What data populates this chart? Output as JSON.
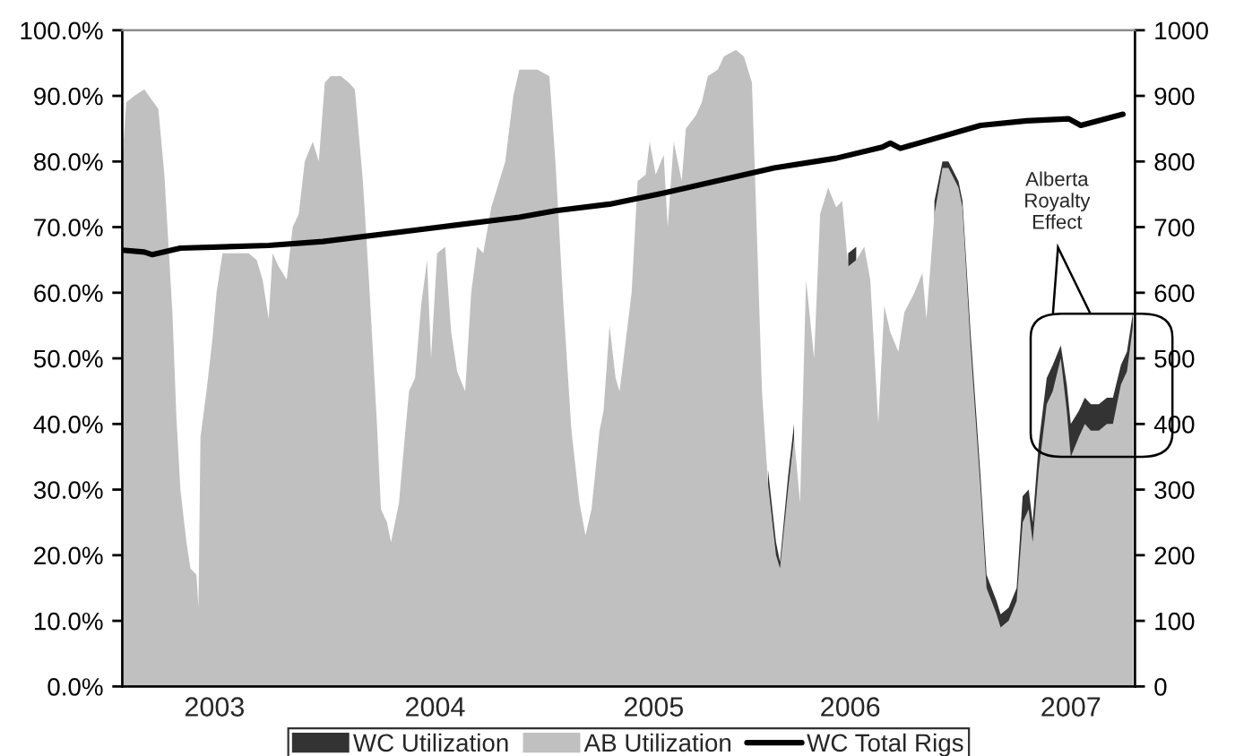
{
  "chart_data": {
    "type": "area",
    "xlim": [
      2002.74,
      2007.79
    ],
    "xticks": [
      {
        "value": 2003.2,
        "label": "2003"
      },
      {
        "value": 2004.3,
        "label": "2004"
      },
      {
        "value": 2005.39,
        "label": "2005"
      },
      {
        "value": 2006.37,
        "label": "2006"
      },
      {
        "value": 2007.47,
        "label": "2007"
      }
    ],
    "ylim": [
      0,
      100
    ],
    "yticks": [
      {
        "value": 0,
        "label": "0.0%"
      },
      {
        "value": 10,
        "label": "10.0%"
      },
      {
        "value": 20,
        "label": "20.0%"
      },
      {
        "value": 30,
        "label": "30.0%"
      },
      {
        "value": 40,
        "label": "40.0%"
      },
      {
        "value": 50,
        "label": "50.0%"
      },
      {
        "value": 60,
        "label": "60.0%"
      },
      {
        "value": 70,
        "label": "70.0%"
      },
      {
        "value": 80,
        "label": "80.0%"
      },
      {
        "value": 90,
        "label": "90.0%"
      },
      {
        "value": 100,
        "label": "100.0%"
      }
    ],
    "y2lim": [
      0,
      1000
    ],
    "y2ticks": [
      0,
      100,
      200,
      300,
      400,
      500,
      600,
      700,
      800,
      900,
      1000
    ],
    "legend": "bottom",
    "grid": false,
    "annotations": [
      "Alberta\nRoyalty\nEffect"
    ],
    "series": [
      {
        "name": "WC Utilization",
        "color": "#333333",
        "x": [
          2005.96,
          2006.0,
          2006.02,
          2006.06,
          2006.09,
          2006.12,
          2006.15,
          2006.19,
          2006.22,
          2006.26,
          2006.3,
          2006.33,
          2006.36,
          2006.4,
          2006.44,
          2006.47,
          2006.51,
          2006.54,
          2006.57,
          2006.61,
          2006.64,
          2006.69,
          2006.73,
          2006.75,
          2006.79,
          2006.83,
          2006.86,
          2006.91,
          2006.93,
          2006.97,
          2007.02,
          2007.05,
          2007.1,
          2007.12,
          2007.16,
          2007.2,
          2007.23,
          2007.26,
          2007.28,
          2007.31,
          2007.35,
          2007.38,
          2007.42,
          2007.45,
          2007.47,
          2007.51,
          2007.54,
          2007.57,
          2007.61,
          2007.65,
          2007.68,
          2007.72,
          2007.75,
          2007.78
        ],
        "values": [
          33,
          22,
          19,
          32,
          40,
          null,
          null,
          null,
          null,
          null,
          null,
          null,
          66,
          67,
          null,
          null,
          null,
          null,
          null,
          null,
          null,
          null,
          null,
          null,
          74,
          80,
          80,
          77,
          74,
          54,
          32,
          17,
          13,
          11,
          12,
          15,
          29,
          30,
          25,
          37,
          47,
          49,
          52,
          46,
          40,
          42,
          44,
          43,
          43,
          44,
          44,
          49,
          51,
          57
        ]
      },
      {
        "name": "AB Utilization",
        "color": "#c0c0c0",
        "x": [
          2002.74,
          2002.76,
          2002.8,
          2002.85,
          2002.92,
          2002.95,
          2002.99,
          2003.01,
          2003.03,
          2003.06,
          2003.08,
          2003.11,
          2003.12,
          2003.13,
          2003.16,
          2003.19,
          2003.21,
          2003.24,
          2003.28,
          2003.32,
          2003.37,
          2003.41,
          2003.44,
          2003.47,
          2003.49,
          2003.52,
          2003.56,
          2003.59,
          2003.62,
          2003.65,
          2003.69,
          2003.72,
          2003.75,
          2003.78,
          2003.83,
          2003.87,
          2003.9,
          2003.94,
          2003.97,
          2004.01,
          2004.03,
          2004.06,
          2004.08,
          2004.12,
          2004.14,
          2004.17,
          2004.2,
          2004.23,
          2004.26,
          2004.28,
          2004.31,
          2004.35,
          2004.38,
          2004.41,
          2004.45,
          2004.48,
          2004.51,
          2004.54,
          2004.58,
          2004.62,
          2004.65,
          2004.69,
          2004.72,
          2004.77,
          2004.81,
          2004.87,
          2004.9,
          2004.94,
          2004.98,
          2005.02,
          2005.05,
          2005.08,
          2005.12,
          2005.14,
          2005.17,
          2005.2,
          2005.22,
          2005.26,
          2005.28,
          2005.31,
          2005.35,
          2005.37,
          2005.4,
          2005.44,
          2005.46,
          2005.49,
          2005.53,
          2005.55,
          2005.6,
          2005.63,
          2005.66,
          2005.71,
          2005.74,
          2005.8,
          2005.84,
          2005.88,
          2005.91,
          2005.93,
          2005.96,
          2006.0,
          2006.02,
          2006.06,
          2006.09,
          2006.12,
          2006.15,
          2006.19,
          2006.22,
          2006.26,
          2006.3,
          2006.33,
          2006.36,
          2006.4,
          2006.44,
          2006.47,
          2006.51,
          2006.54,
          2006.57,
          2006.61,
          2006.64,
          2006.69,
          2006.73,
          2006.75,
          2006.79,
          2006.83,
          2006.86,
          2006.91,
          2006.93,
          2006.97,
          2007.02,
          2007.05,
          2007.1,
          2007.12,
          2007.16,
          2007.2,
          2007.23,
          2007.26,
          2007.28,
          2007.31,
          2007.35,
          2007.38,
          2007.42,
          2007.45,
          2007.47,
          2007.51,
          2007.54,
          2007.57,
          2007.61,
          2007.65,
          2007.68,
          2007.72,
          2007.75,
          2007.78
        ],
        "values": [
          80,
          89,
          90,
          91,
          88,
          78,
          57,
          41,
          30,
          22,
          18,
          17,
          12,
          38,
          45,
          53,
          60,
          66,
          66,
          66,
          66,
          65,
          62,
          56,
          66,
          64,
          62,
          70,
          72,
          80,
          83,
          80,
          92,
          93,
          93,
          92,
          91,
          77,
          62,
          40,
          27,
          25,
          22,
          28,
          35,
          45,
          47,
          58,
          65,
          50,
          66,
          67,
          54,
          48,
          45,
          60,
          67,
          66,
          73,
          77,
          80,
          90,
          94,
          94,
          94,
          93,
          80,
          58,
          39,
          28,
          23,
          27,
          39,
          42,
          55,
          47,
          45,
          55,
          60,
          77,
          78,
          83,
          78,
          81,
          70,
          83,
          77,
          85,
          87,
          89,
          93,
          94,
          96,
          97,
          96,
          92,
          64,
          45,
          31,
          20,
          18,
          30,
          38,
          28,
          62,
          50,
          72,
          76,
          73,
          74,
          64,
          65,
          67,
          62,
          40,
          58,
          54,
          51,
          57,
          60,
          63,
          56,
          72,
          79,
          79,
          76,
          73,
          52,
          30,
          15,
          11,
          9,
          10,
          13,
          25,
          27,
          22,
          33,
          43,
          45,
          50,
          42,
          35,
          38,
          40,
          39,
          39,
          40,
          40,
          46,
          48,
          55
        ]
      },
      {
        "name": "WC Total Rigs",
        "type": "line",
        "axis": "y2",
        "color": "#000000",
        "x": [
          2002.74,
          2002.85,
          2002.89,
          2003.03,
          2003.47,
          2003.74,
          2004.19,
          2004.72,
          2004.9,
          2005.17,
          2005.44,
          2005.7,
          2005.99,
          2006.3,
          2006.53,
          2006.57,
          2006.62,
          2007.02,
          2007.25,
          2007.46,
          2007.52,
          2007.73
        ],
        "values": [
          665,
          662,
          658,
          668,
          672,
          678,
          695,
          715,
          725,
          735,
          752,
          770,
          790,
          805,
          822,
          828,
          820,
          855,
          862,
          865,
          855,
          872
        ]
      }
    ]
  }
}
